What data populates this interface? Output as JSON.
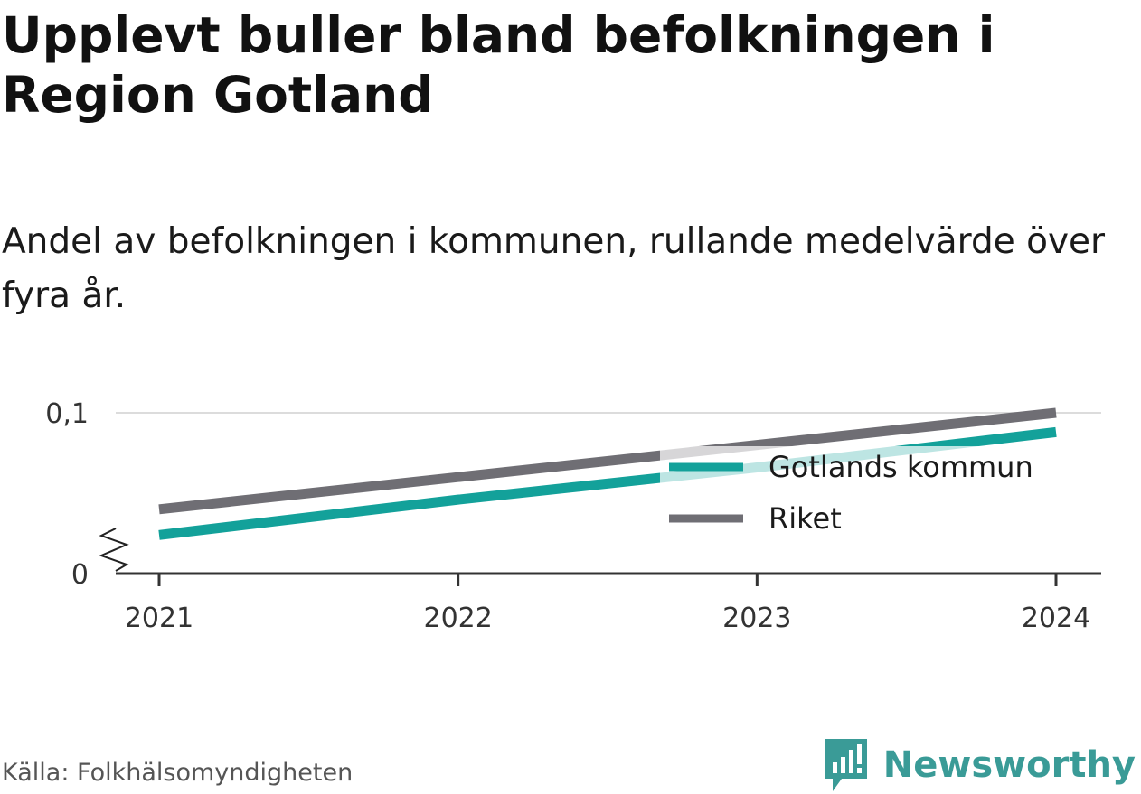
{
  "title": "Upplevt buller bland befolkningen i Region Gotland",
  "subtitle": "Andel av befolkningen i kommunen, rullande medelvärde över fyra år.",
  "source": "Källa: Folkhälsomyndigheten",
  "brand": {
    "name": "Newsworthy",
    "icon": "bar-chart-speech-bubble-icon",
    "color": "#3a9b97"
  },
  "chart_data": {
    "type": "line",
    "x": [
      2021,
      2022,
      2023,
      2024
    ],
    "x_tick_labels": [
      "2021",
      "2022",
      "2023",
      "2024"
    ],
    "y_tick_labels": [
      "0",
      "0,1"
    ],
    "y_ticks": [
      0,
      0.1
    ],
    "ylim": [
      0,
      0.1
    ],
    "y_axis_break": true,
    "grid": true,
    "legend_position": "right",
    "series": [
      {
        "name": "Gotlands kommun",
        "color": "#13a19a",
        "values": [
          0.024,
          0.046,
          0.066,
          0.088
        ]
      },
      {
        "name": "Riket",
        "color": "#6f6e74",
        "values": [
          0.04,
          0.06,
          0.08,
          0.1
        ]
      }
    ]
  }
}
